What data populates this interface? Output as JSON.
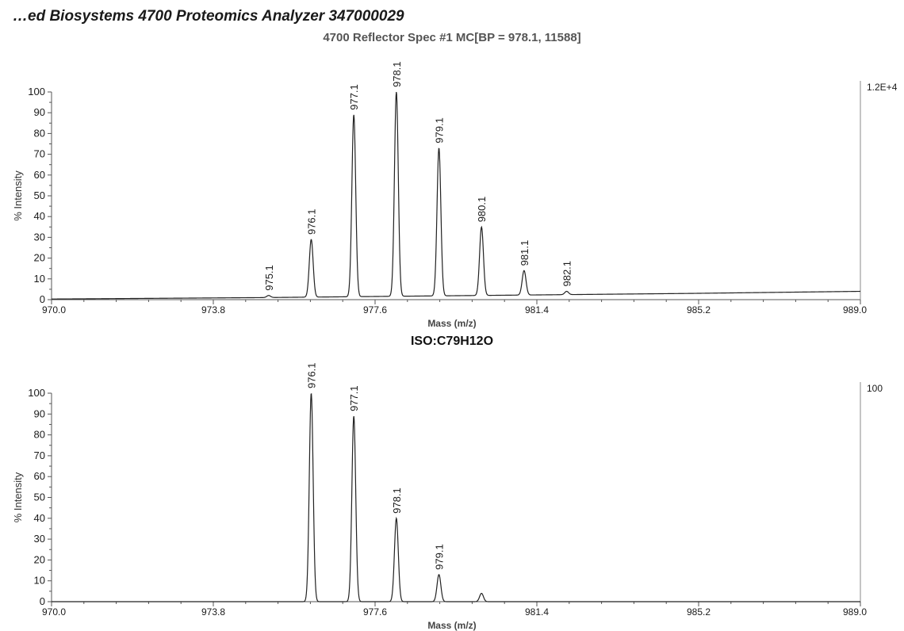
{
  "header": {
    "title": "…ed Biosystems 4700 Proteomics Analyzer 347000029"
  },
  "colors": {
    "text": "#1a1a1a",
    "axis": "#555555",
    "trace": "#222222"
  },
  "chart_data": [
    {
      "type": "line",
      "title": "4700 Reflector Spec #1 MC[BP = 978.1, 11588]",
      "xlabel": "Mass (m/z)",
      "ylabel": "% Intensity",
      "xlim": [
        970.0,
        989.0
      ],
      "ylim": [
        0,
        100
      ],
      "xticks": [
        "970.0",
        "973.8",
        "977.6",
        "981.4",
        "985.2",
        "989.0"
      ],
      "yticks": [
        "0",
        "10",
        "20",
        "30",
        "40",
        "50",
        "60",
        "70",
        "80",
        "90",
        "100"
      ],
      "max_label": "1.2E+4",
      "peaks": [
        {
          "mass": 975.1,
          "intensity": 2,
          "label": "975.1"
        },
        {
          "mass": 976.1,
          "intensity": 29,
          "label": "976.1"
        },
        {
          "mass": 977.1,
          "intensity": 89,
          "label": "977.1"
        },
        {
          "mass": 978.1,
          "intensity": 100,
          "label": "978.1"
        },
        {
          "mass": 979.1,
          "intensity": 73,
          "label": "979.1"
        },
        {
          "mass": 980.1,
          "intensity": 35,
          "label": "980.1"
        },
        {
          "mass": 981.1,
          "intensity": 14,
          "label": "981.1"
        },
        {
          "mass": 982.1,
          "intensity": 4,
          "label": "982.1"
        }
      ],
      "baseline": [
        [
          970.0,
          0.3
        ],
        [
          975.0,
          1.0
        ],
        [
          980.0,
          2.0
        ],
        [
          985.0,
          3.0
        ],
        [
          989.0,
          4.0
        ]
      ]
    },
    {
      "type": "line",
      "title": "ISO:C79H12O",
      "xlabel": "Mass (m/z)",
      "ylabel": "% Intensity",
      "xlim": [
        970.0,
        989.0
      ],
      "ylim": [
        0,
        100
      ],
      "xticks": [
        "970.0",
        "973.8",
        "977.6",
        "981.4",
        "985.2",
        "989.0"
      ],
      "yticks": [
        "0",
        "10",
        "20",
        "30",
        "40",
        "50",
        "60",
        "70",
        "80",
        "90",
        "100"
      ],
      "max_label": "100",
      "peaks": [
        {
          "mass": 976.1,
          "intensity": 100,
          "label": "976.1"
        },
        {
          "mass": 977.1,
          "intensity": 89,
          "label": "977.1"
        },
        {
          "mass": 978.1,
          "intensity": 40,
          "label": "978.1"
        },
        {
          "mass": 979.1,
          "intensity": 13,
          "label": "979.1"
        },
        {
          "mass": 980.1,
          "intensity": 4,
          "label": ""
        }
      ],
      "baseline": [
        [
          970.0,
          0
        ],
        [
          989.0,
          0
        ]
      ]
    }
  ]
}
